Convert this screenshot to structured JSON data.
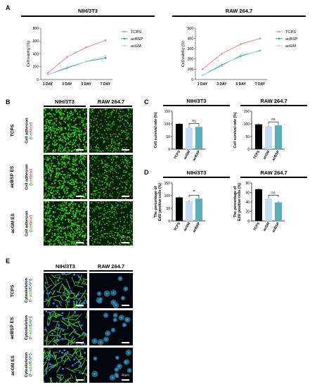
{
  "panels": {
    "A": {
      "letter": "A",
      "titles": [
        "NIH/3T3",
        "RAW 264.7"
      ],
      "ylabel": "Cell viability (%)",
      "legend": [
        "TCPS",
        "acBSP",
        "acGM"
      ]
    },
    "B": {
      "letter": "B",
      "col_titles": [
        "NIH/3T3",
        "RAW 264.7"
      ],
      "row_groups": [
        "TCPS",
        "acBSP ES",
        "acGM ES"
      ],
      "row_label_main": "Cell adhesion",
      "row_label_open": "(",
      "row_label_live": "live",
      "row_label_slash": "/",
      "row_label_dead": "dead",
      "row_label_close": ")",
      "scale_text": "500 μm"
    },
    "C": {
      "letter": "C",
      "titles": [
        "NIH/3T3",
        "RAW 264.7"
      ],
      "ylabel": "Cell  survival rate (%)",
      "sig": [
        "ns",
        "ns"
      ]
    },
    "D": {
      "letter": "D",
      "titles": [
        "NIH/3T3",
        "RAW 264.7"
      ],
      "ylabel_line1": "The percentage of",
      "ylabel_line2": "EdU positive cells (%)",
      "sig": [
        "*",
        "ns"
      ]
    },
    "E": {
      "letter": "E",
      "col_titles": [
        "NIH/3T3",
        "RAW 264.7"
      ],
      "row_groups": [
        "TCPS",
        "acBSP ES",
        "acGM ES"
      ],
      "row_label_main": "Cytoskeleton",
      "row_label_open": "(",
      "row_label_factin": "F-actin",
      "row_label_slash": "/",
      "row_label_dapi": "DAPI",
      "row_label_close": ")",
      "scale_text": "25 μm"
    }
  },
  "chart_data": [
    {
      "type": "line",
      "panel": "A",
      "title": "NIH/3T3",
      "categories": [
        "1 DAY",
        "3 DAY",
        "5 DAY",
        "7 DAY"
      ],
      "ylabel": "Cell viability (%)",
      "ylim": [
        0,
        800
      ],
      "yticks": [
        0,
        200,
        400,
        600,
        800
      ],
      "series": [
        {
          "name": "TCPS",
          "values": [
            100,
            350,
            500,
            610
          ],
          "color": "#f08c8c"
        },
        {
          "name": "acBSP",
          "values": [
            75,
            180,
            280,
            335
          ],
          "color": "#3a9e94"
        },
        {
          "name": "acGM",
          "values": [
            75,
            195,
            280,
            370
          ],
          "color": "#bcd7ee"
        }
      ]
    },
    {
      "type": "line",
      "panel": "A",
      "title": "RAW 264.7",
      "categories": [
        "1 DAY",
        "3 DAY",
        "5 DAY",
        "7 DAY"
      ],
      "ylabel": "Cell viability (%)",
      "ylim": [
        0,
        500
      ],
      "yticks": [
        0,
        100,
        200,
        300,
        400,
        500
      ],
      "series": [
        {
          "name": "TCPS",
          "values": [
            100,
            250,
            345,
            400
          ],
          "color": "#f08c8c"
        },
        {
          "name": "acBSP",
          "values": [
            40,
            140,
            230,
            280
          ],
          "color": "#3a9e94"
        },
        {
          "name": "acGM",
          "values": [
            40,
            130,
            240,
            275
          ],
          "color": "#bcd7ee"
        }
      ]
    },
    {
      "type": "bar",
      "panel": "C",
      "title": "NIH/3T3",
      "categories": [
        "TCPS",
        "acGM",
        "acBSP"
      ],
      "values": [
        100,
        85,
        88
      ],
      "colors": [
        "#000000",
        "#c5dcf0",
        "#5aaeb8"
      ],
      "ylabel": "Cell  survival rate (%)",
      "ylim": [
        0,
        150
      ],
      "yticks": [
        0,
        50,
        100,
        150
      ]
    },
    {
      "type": "bar",
      "panel": "C",
      "title": "RAW 264.7",
      "categories": [
        "TCPS",
        "acGM",
        "acBSP"
      ],
      "values": [
        98,
        90,
        94
      ],
      "colors": [
        "#000000",
        "#c5dcf0",
        "#5aaeb8"
      ],
      "ylabel": "Cell  survival rate (%)",
      "ylim": [
        0,
        150
      ],
      "yticks": [
        0,
        50,
        100,
        150
      ]
    },
    {
      "type": "bar",
      "panel": "D",
      "title": "NIH/3T3",
      "categories": [
        "TCPS",
        "acGM",
        "acBSP"
      ],
      "values": [
        93,
        78,
        88
      ],
      "colors": [
        "#000000",
        "#c5dcf0",
        "#5aaeb8"
      ],
      "ylabel": "The percentage of EdU positive cells (%)",
      "ylim": [
        0,
        150
      ],
      "yticks": [
        0,
        50,
        100,
        150
      ]
    },
    {
      "type": "bar",
      "panel": "D",
      "title": "RAW 264.7",
      "categories": [
        "TCPS",
        "acGM",
        "acBSP"
      ],
      "values": [
        67,
        47,
        39
      ],
      "colors": [
        "#000000",
        "#c5dcf0",
        "#5aaeb8"
      ],
      "ylabel": "The percentage of EdU positive cells (%)",
      "ylim": [
        0,
        80
      ],
      "yticks": [
        0,
        20,
        40,
        60,
        80
      ]
    }
  ]
}
